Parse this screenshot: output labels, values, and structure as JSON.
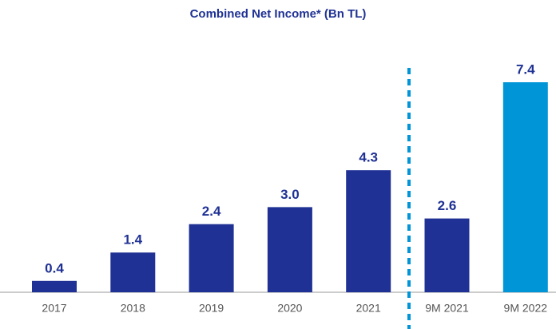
{
  "chart_data": {
    "type": "bar",
    "title": "Combined Net Income* (Bn TL)",
    "categories": [
      "2017",
      "2018",
      "2019",
      "2020",
      "2021",
      "9M 2021",
      "9M 2022"
    ],
    "values": [
      0.4,
      1.4,
      2.4,
      3,
      4.3,
      2.6,
      7.4
    ],
    "value_labels": [
      "0.4",
      "1.4",
      "2.4",
      "3.0",
      "4.3",
      "2.6",
      "7.4"
    ],
    "colors": [
      "#1f3194",
      "#1f3194",
      "#1f3194",
      "#1f3194",
      "#1f3194",
      "#1f3194",
      "#0095d6"
    ]
  }
}
